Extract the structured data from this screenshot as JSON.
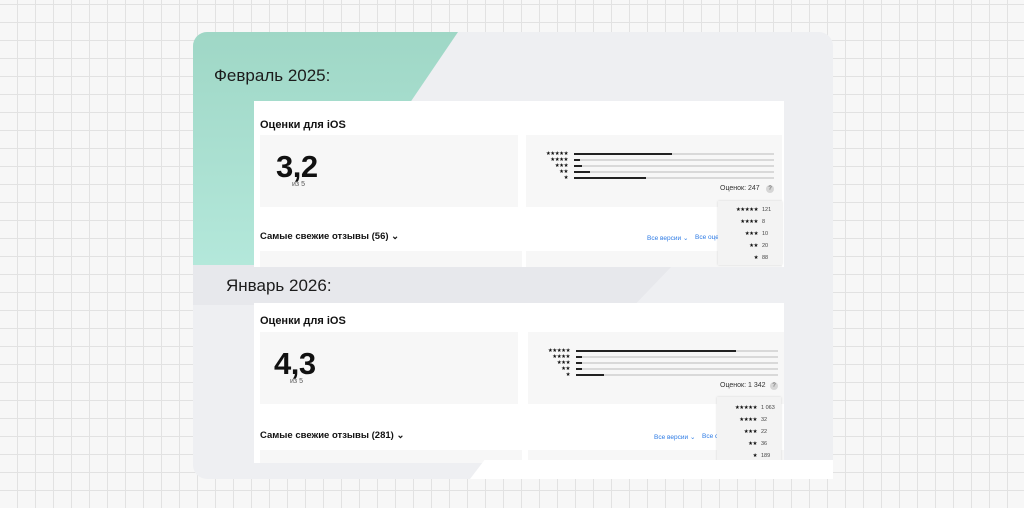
{
  "slides": [
    {
      "heading": "Февраль 2025:",
      "card_title": "Оценки для iOS",
      "rating": "3,2",
      "rating_sub": "из 5",
      "total_label": "Оценок: 247",
      "reviews_title": "Самые свежие отзывы (56)",
      "filter_version": "Все версии",
      "filter_rating": "Все оце",
      "distribution": [
        {
          "stars": "★★★★★",
          "count": "121",
          "fraction": 0.49
        },
        {
          "stars": "★★★★",
          "count": "8",
          "fraction": 0.03
        },
        {
          "stars": "★★★",
          "count": "10",
          "fraction": 0.04
        },
        {
          "stars": "★★",
          "count": "20",
          "fraction": 0.08
        },
        {
          "stars": "★",
          "count": "88",
          "fraction": 0.36
        }
      ]
    },
    {
      "heading": "Январь 2026:",
      "card_title": "Оценки для iOS",
      "rating": "4,3",
      "rating_sub": "из 5",
      "total_label": "Оценок: 1 342",
      "reviews_title": "Самые свежие отзывы (281)",
      "filter_version": "Все версии",
      "filter_rating": "Все с",
      "distribution": [
        {
          "stars": "★★★★★",
          "count": "1 063",
          "fraction": 0.79
        },
        {
          "stars": "★★★★",
          "count": "32",
          "fraction": 0.02
        },
        {
          "stars": "★★★",
          "count": "22",
          "fraction": 0.02
        },
        {
          "stars": "★★",
          "count": "36",
          "fraction": 0.03
        },
        {
          "stars": "★",
          "count": "189",
          "fraction": 0.14
        }
      ]
    }
  ],
  "icons": {
    "help": "question-icon",
    "chevron": "chevron-down-icon"
  },
  "colors": {
    "accent_teal": "#a5dccc",
    "link": "#2d7be5",
    "bar": "#222222"
  }
}
